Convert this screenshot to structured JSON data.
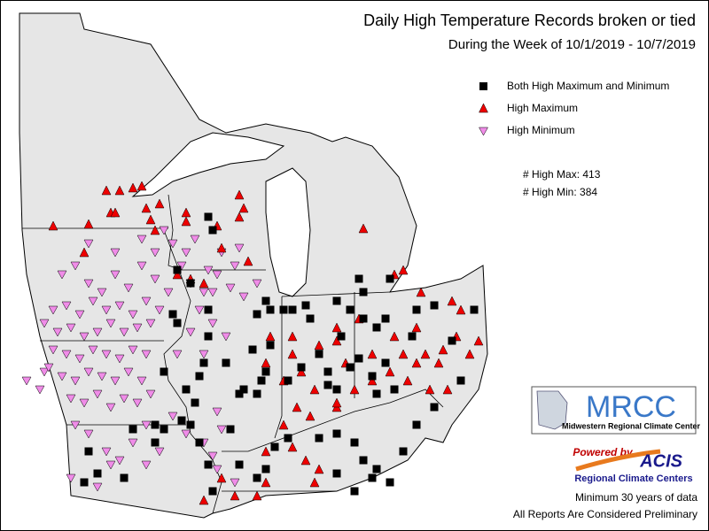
{
  "header": {
    "title": "Daily High Temperature Records broken or tied",
    "subtitle": "During the Week of 10/1/2019 - 10/7/2019"
  },
  "legend": {
    "entries": [
      "Both High Maximum and Minimum",
      "High Maximum",
      "High Minimum"
    ]
  },
  "stats": [
    "# High Max: 413",
    "# High Min: 384"
  ],
  "logos": {
    "mrcc": "MRCC",
    "mrcc_full": "Midwestern Regional Climate Center",
    "powered": "Powered by",
    "acis": "ACIS",
    "rcc": "Regional Climate Centers"
  },
  "footer": [
    "Minimum 30 years of data",
    "All Reports Are Considered Preliminary"
  ]
}
